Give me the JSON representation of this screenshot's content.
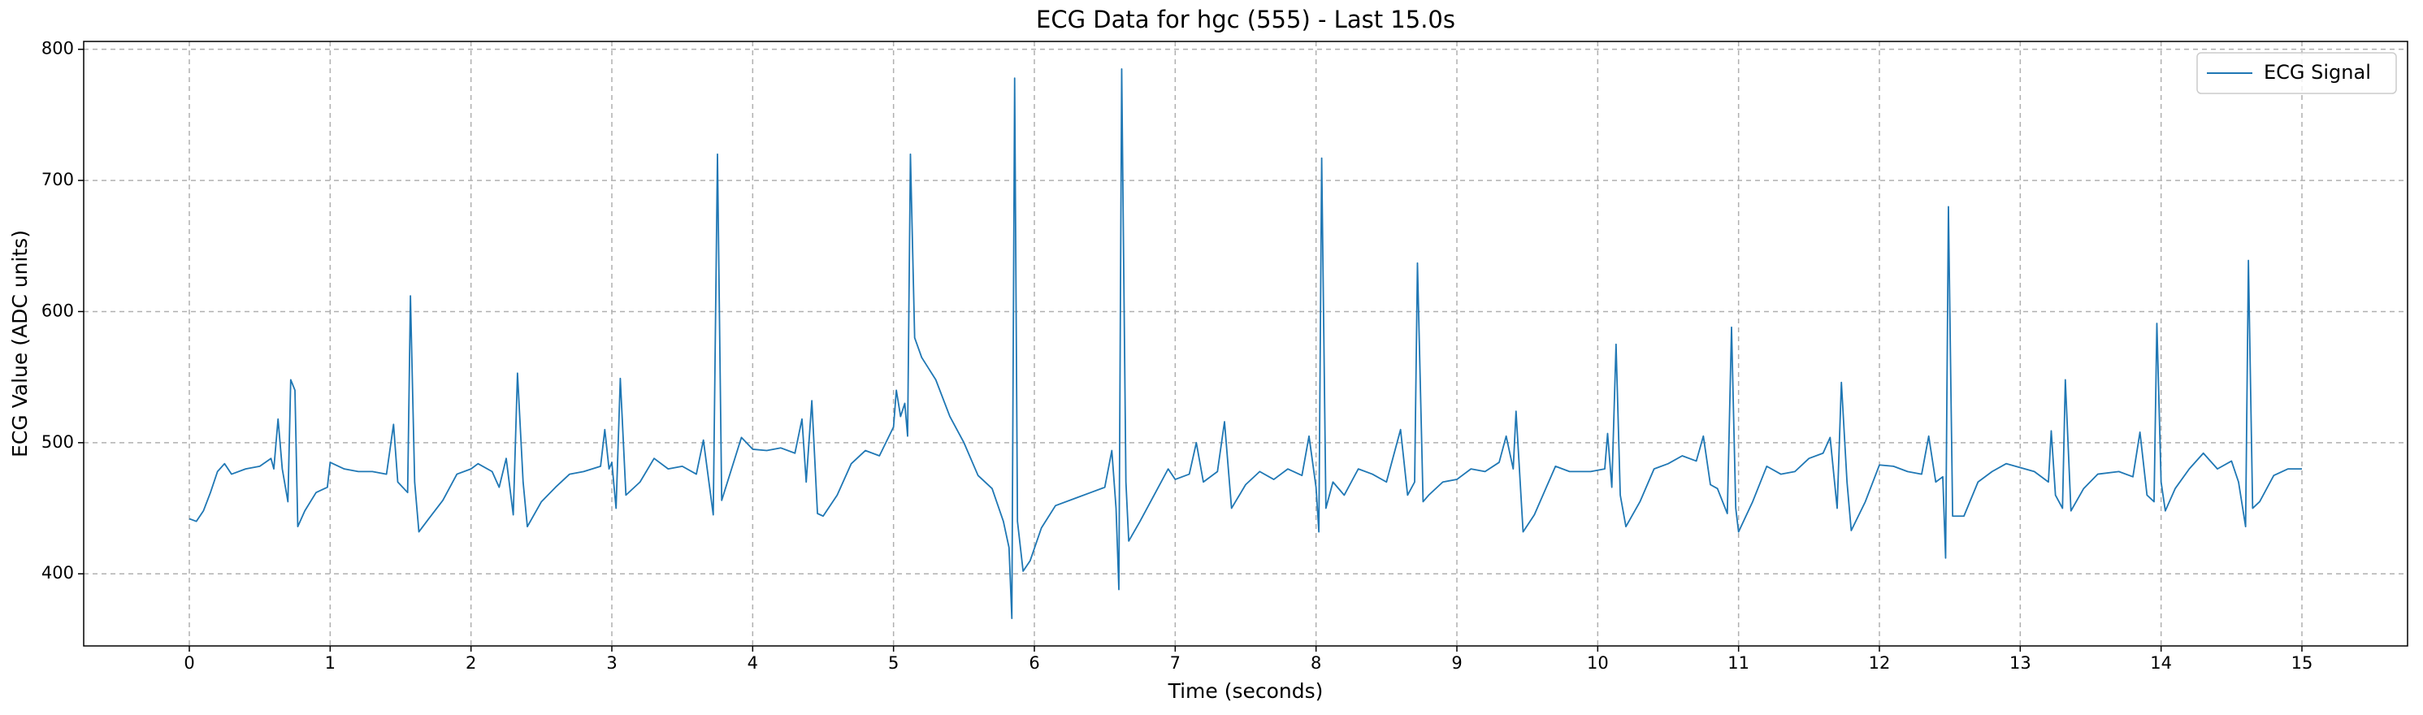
{
  "chart_data": {
    "type": "line",
    "title": "ECG Data for hgc (555) - Last 15.0s",
    "xlabel": "Time (seconds)",
    "ylabel": "ECG Value (ADC units)",
    "x": [
      0,
      0.05,
      0.1,
      0.15,
      0.2,
      0.25,
      0.3,
      0.4,
      0.5,
      0.58,
      0.6,
      0.63,
      0.66,
      0.7,
      0.72,
      0.75,
      0.77,
      0.82,
      0.9,
      0.98,
      1.0,
      1.1,
      1.2,
      1.3,
      1.4,
      1.45,
      1.48,
      1.55,
      1.57,
      1.6,
      1.63,
      1.7,
      1.8,
      1.9,
      2.0,
      2.05,
      2.15,
      2.2,
      2.25,
      2.3,
      2.33,
      2.37,
      2.4,
      2.5,
      2.6,
      2.7,
      2.8,
      2.92,
      2.95,
      2.98,
      3.0,
      3.03,
      3.06,
      3.1,
      3.2,
      3.3,
      3.4,
      3.5,
      3.6,
      3.65,
      3.72,
      3.75,
      3.78,
      3.85,
      3.92,
      4.0,
      4.1,
      4.2,
      4.3,
      4.35,
      4.38,
      4.42,
      4.46,
      4.5,
      4.6,
      4.7,
      4.8,
      4.9,
      5.0,
      5.02,
      5.05,
      5.08,
      5.1,
      5.12,
      5.15,
      5.2,
      5.3,
      5.4,
      5.5,
      5.6,
      5.7,
      5.78,
      5.82,
      5.84,
      5.86,
      5.88,
      5.92,
      5.97,
      6.05,
      6.15,
      6.3,
      6.4,
      6.5,
      6.55,
      6.58,
      6.6,
      6.62,
      6.65,
      6.67,
      6.75,
      6.85,
      6.95,
      7.0,
      7.1,
      7.15,
      7.2,
      7.3,
      7.35,
      7.4,
      7.5,
      7.6,
      7.7,
      7.8,
      7.9,
      7.95,
      8.0,
      8.02,
      8.04,
      8.07,
      8.12,
      8.2,
      8.3,
      8.4,
      8.5,
      8.6,
      8.65,
      8.7,
      8.72,
      8.76,
      8.8,
      8.9,
      9.0,
      9.1,
      9.2,
      9.3,
      9.35,
      9.4,
      9.42,
      9.47,
      9.55,
      9.7,
      9.8,
      9.95,
      10.05,
      10.07,
      10.1,
      10.13,
      10.16,
      10.2,
      10.3,
      10.4,
      10.5,
      10.6,
      10.7,
      10.75,
      10.8,
      10.85,
      10.92,
      10.95,
      10.98,
      11.0,
      11.1,
      11.2,
      11.3,
      11.4,
      11.5,
      11.6,
      11.65,
      11.7,
      11.73,
      11.77,
      11.8,
      11.9,
      12.0,
      12.1,
      12.2,
      12.3,
      12.35,
      12.4,
      12.45,
      12.47,
      12.49,
      12.52,
      12.6,
      12.7,
      12.8,
      12.9,
      13.0,
      13.1,
      13.2,
      13.22,
      13.25,
      13.3,
      13.32,
      13.36,
      13.45,
      13.55,
      13.7,
      13.8,
      13.85,
      13.9,
      13.95,
      13.97,
      14.0,
      14.03,
      14.1,
      14.2,
      14.3,
      14.4,
      14.5,
      14.55,
      14.6,
      14.62,
      14.65,
      14.7,
      14.8,
      14.9,
      15.0
    ],
    "series": [
      {
        "name": "ECG Signal",
        "color": "#1f77b4",
        "values": [
          442,
          440,
          448,
          462,
          478,
          484,
          476,
          480,
          482,
          488,
          480,
          518,
          480,
          455,
          548,
          540,
          436,
          448,
          462,
          466,
          485,
          480,
          478,
          478,
          476,
          514,
          470,
          462,
          612,
          470,
          432,
          442,
          456,
          476,
          480,
          484,
          478,
          466,
          488,
          445,
          553,
          470,
          436,
          455,
          466,
          476,
          478,
          482,
          510,
          480,
          485,
          450,
          549,
          460,
          470,
          488,
          480,
          482,
          476,
          502,
          445,
          720,
          456,
          480,
          504,
          495,
          494,
          496,
          492,
          518,
          470,
          532,
          446,
          444,
          460,
          484,
          494,
          490,
          512,
          540,
          520,
          530,
          505,
          720,
          580,
          565,
          548,
          520,
          500,
          475,
          465,
          440,
          420,
          366,
          778,
          440,
          402,
          410,
          435,
          452,
          458,
          462,
          466,
          494,
          450,
          388,
          785,
          470,
          425,
          440,
          460,
          480,
          472,
          476,
          500,
          470,
          478,
          516,
          450,
          468,
          478,
          472,
          480,
          475,
          505,
          466,
          432,
          717,
          450,
          470,
          460,
          480,
          476,
          470,
          510,
          460,
          470,
          637,
          455,
          460,
          470,
          472,
          480,
          478,
          485,
          505,
          480,
          524,
          432,
          445,
          482,
          478,
          478,
          480,
          507,
          466,
          575,
          460,
          436,
          455,
          480,
          484,
          490,
          486,
          505,
          468,
          465,
          446,
          588,
          450,
          432,
          455,
          482,
          476,
          478,
          488,
          492,
          504,
          450,
          546,
          470,
          433,
          455,
          483,
          482,
          478,
          476,
          505,
          470,
          474,
          412,
          680,
          444,
          444,
          470,
          478,
          484,
          481,
          478,
          470,
          509,
          460,
          450,
          548,
          448,
          465,
          476,
          478,
          474,
          508,
          460,
          455,
          591,
          470,
          448,
          465,
          480,
          492,
          480,
          486,
          470,
          436,
          639,
          450,
          455,
          475,
          480,
          480
        ]
      }
    ],
    "xlim": [
      -0.75,
      15.75
    ],
    "ylim": [
      345,
      806
    ],
    "xticks": [
      0,
      1,
      2,
      3,
      4,
      5,
      6,
      7,
      8,
      9,
      10,
      11,
      12,
      13,
      14,
      15
    ],
    "yticks": [
      400,
      500,
      600,
      700,
      800
    ],
    "grid": true,
    "legend": "upper right"
  }
}
